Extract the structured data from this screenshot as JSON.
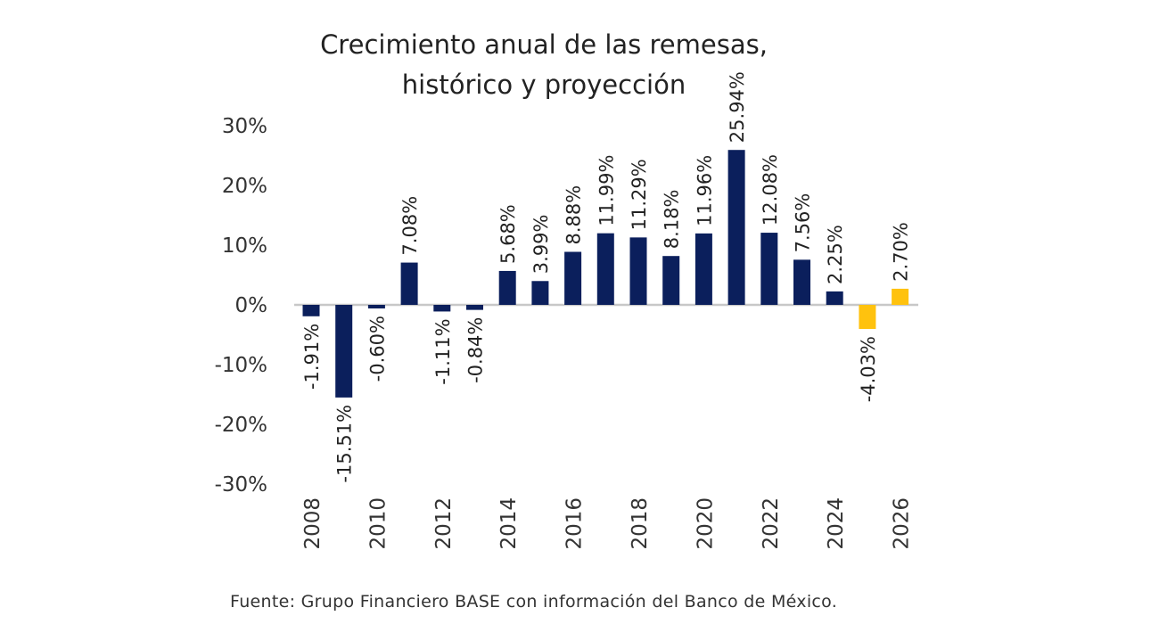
{
  "chart_data": {
    "type": "bar",
    "title": [
      "Crecimiento anual de las remesas,",
      "histórico y proyección"
    ],
    "categories": [
      2008,
      2009,
      2010,
      2011,
      2012,
      2013,
      2014,
      2015,
      2016,
      2017,
      2018,
      2019,
      2020,
      2021,
      2022,
      2023,
      2024,
      2025,
      2026
    ],
    "values": [
      -1.91,
      -15.51,
      -0.6,
      7.08,
      -1.11,
      -0.84,
      5.68,
      3.99,
      8.88,
      11.99,
      11.29,
      8.18,
      11.96,
      25.94,
      12.08,
      7.56,
      2.25,
      -4.03,
      2.7
    ],
    "data_labels": [
      "-1.91%",
      "-15.51%",
      "-0.60%",
      "7.08%",
      "-1.11%",
      "-0.84%",
      "5.68%",
      "3.99%",
      "8.88%",
      "11.99%",
      "11.29%",
      "8.18%",
      "11.96%",
      "25.94%",
      "12.08%",
      "7.56%",
      "2.25%",
      "-4.03%",
      "2.70%"
    ],
    "bar_kind": [
      "historical",
      "historical",
      "historical",
      "historical",
      "historical",
      "historical",
      "historical",
      "historical",
      "historical",
      "historical",
      "historical",
      "historical",
      "historical",
      "historical",
      "historical",
      "historical",
      "historical",
      "projection",
      "projection"
    ],
    "colors": {
      "historical": "#0B1F5C",
      "projection": "#FFC20E",
      "axis": "#C8C8C8"
    },
    "x_tick_labels": [
      "2008",
      "2010",
      "2012",
      "2014",
      "2016",
      "2018",
      "2020",
      "2022",
      "2024",
      "2026"
    ],
    "y_tick_labels": [
      "30%",
      "20%",
      "10%",
      "0%",
      "-10%",
      "-20%",
      "-30%"
    ],
    "y_ticks": [
      30,
      20,
      10,
      0,
      -10,
      -20,
      -30
    ],
    "ylim": [
      -30,
      30
    ],
    "xlabel": "",
    "ylabel": "",
    "grid": false,
    "legend": "none"
  },
  "source": "Fuente: Grupo Financiero BASE con información del Banco de México."
}
